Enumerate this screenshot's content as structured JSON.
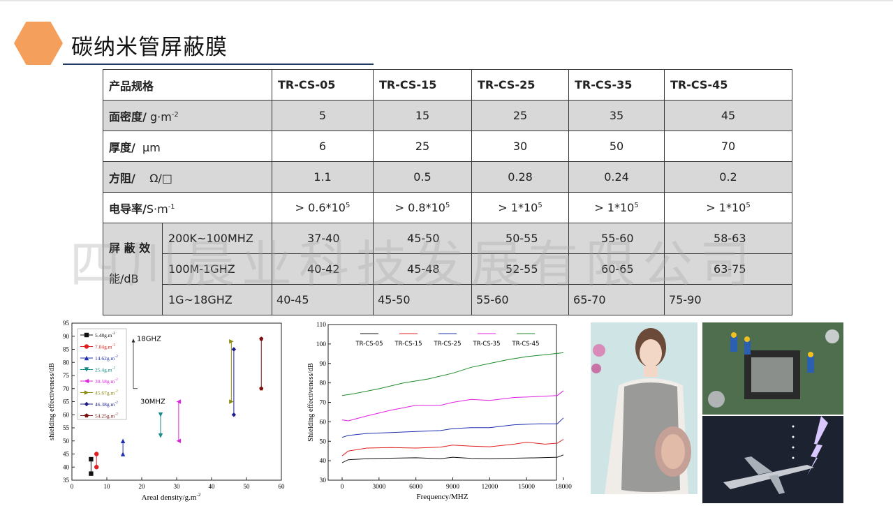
{
  "header": {
    "title": "碳纳米管屏蔽膜"
  },
  "watermark": "四川晨业科技发展有限公司",
  "table": {
    "spec_label": "产品规格",
    "models": [
      "TR-CS-05",
      "TR-CS-15",
      "TR-CS-25",
      "TR-CS-35",
      "TR-CS-45"
    ],
    "areal_density": {
      "label": "面密度/",
      "unit": "g·m",
      "unit_exp": "-2",
      "values": [
        "5",
        "15",
        "25",
        "35",
        "45"
      ]
    },
    "thickness": {
      "label": "厚度/",
      "unit": "μm",
      "values": [
        "6",
        "25",
        "30",
        "50",
        "70"
      ]
    },
    "sheet_resistance": {
      "label": "方阻/",
      "unit": "Ω/□",
      "values": [
        "1.1",
        "0.5",
        "0.28",
        "0.24",
        "0.2"
      ]
    },
    "conductivity": {
      "label": "电导率/",
      "unit": "S·m",
      "unit_exp": "-1",
      "values": [
        {
          "base": "> 0.6*10",
          "exp": "5"
        },
        {
          "base": "> 0.8*10",
          "exp": "5"
        },
        {
          "base": "> 1*10",
          "exp": "5"
        },
        {
          "base": "> 1*10",
          "exp": "5"
        },
        {
          "base": "> 1*10",
          "exp": "5"
        }
      ]
    },
    "shielding": {
      "label_line1": "屏 蔽 效",
      "label_line2": "能/dB",
      "rows": [
        {
          "range": "200K~100MHZ",
          "values": [
            "37-40",
            "45-50",
            "50-55",
            "55-60",
            "58-63"
          ]
        },
        {
          "range": "100M-1GHZ",
          "values": [
            "40-42",
            "45-48",
            "52-55",
            "60-65",
            "63-75"
          ]
        },
        {
          "range": "1G~18GHZ",
          "values": [
            "40-45",
            "45-50",
            "55-60",
            "65-70",
            "75-90"
          ]
        }
      ]
    }
  },
  "chart_data": [
    {
      "type": "scatter",
      "xlabel": "Areal density/g.m",
      "xlabel_exp": "-2",
      "ylabel": "shielding effectiveness/dB",
      "xlim": [
        0,
        60
      ],
      "ylim": [
        35,
        95
      ],
      "xticks": [
        0,
        10,
        20,
        30,
        40,
        50,
        60
      ],
      "yticks": [
        35,
        40,
        45,
        50,
        55,
        60,
        65,
        70,
        75,
        80,
        85,
        90,
        95
      ],
      "annotation_top": "18GHZ",
      "annotation_bottom": "30MHZ",
      "legend_position": "top-left",
      "series": [
        {
          "name": "5.48g.m",
          "exp": "-2",
          "x": 5.48,
          "low": 37.5,
          "high": 43,
          "marker": "square",
          "color": "#111111"
        },
        {
          "name": "7.04g.m",
          "exp": "-2",
          "x": 7.04,
          "low": 40,
          "high": 45,
          "marker": "circle",
          "color": "#e02020"
        },
        {
          "name": "14.62g.m",
          "exp": "-2",
          "x": 14.62,
          "low": 45,
          "high": 50,
          "marker": "triangle-up",
          "color": "#1e2fb0"
        },
        {
          "name": "25.4g.m",
          "exp": "-2",
          "x": 25.4,
          "low": 52,
          "high": 60,
          "marker": "triangle-down",
          "color": "#168a8a"
        },
        {
          "name": "30.58g.m",
          "exp": "-2",
          "x": 30.58,
          "low": 50,
          "high": 65,
          "marker": "triangle-left",
          "color": "#e020e0"
        },
        {
          "name": "45.67g.m",
          "exp": "-2",
          "x": 45.67,
          "low": 65,
          "high": 88,
          "marker": "triangle-right",
          "color": "#8a8a10"
        },
        {
          "name": "46.38g.m",
          "exp": "-2",
          "x": 46.38,
          "low": 60,
          "high": 85,
          "marker": "diamond",
          "color": "#1a1a8a"
        },
        {
          "name": "54.25g.m",
          "exp": "-2",
          "x": 54.25,
          "low": 70,
          "high": 89,
          "marker": "pentagon",
          "color": "#7a1010"
        }
      ]
    },
    {
      "type": "line",
      "xlabel": "Frequency/MHZ",
      "ylabel": "Shielding effectiveness/dB",
      "xlim": [
        0,
        18000
      ],
      "ylim": [
        30,
        110
      ],
      "xticks": [
        0,
        3000,
        6000,
        9000,
        12000,
        15000,
        18000
      ],
      "yticks": [
        30,
        40,
        50,
        60,
        70,
        80,
        90,
        100,
        110
      ],
      "legend_position": "top",
      "series": [
        {
          "name": "TR-CS-05",
          "color": "#111111",
          "x": [
            0,
            500,
            2000,
            4000,
            6000,
            8000,
            9000,
            10500,
            12000,
            14000,
            16000,
            17500,
            18000
          ],
          "y": [
            39,
            40.5,
            41,
            41.3,
            41.5,
            41,
            41.8,
            41.2,
            41,
            41.3,
            41.5,
            41.8,
            43
          ]
        },
        {
          "name": "TR-CS-15",
          "color": "#e02020",
          "x": [
            0,
            500,
            2000,
            4000,
            6000,
            8000,
            9000,
            10500,
            12000,
            14000,
            15000,
            16500,
            17500,
            18000
          ],
          "y": [
            42.5,
            45,
            46.5,
            46.8,
            46.5,
            47,
            48,
            47.5,
            47.2,
            48.5,
            49.5,
            48.5,
            49,
            51
          ]
        },
        {
          "name": "TR-CS-25",
          "color": "#1e2fb0",
          "x": [
            0,
            500,
            2000,
            4000,
            6000,
            8000,
            9000,
            10500,
            12000,
            14000,
            16000,
            17500,
            18000
          ],
          "y": [
            52,
            53,
            54,
            54.5,
            55,
            55.5,
            56.5,
            57,
            57,
            58.5,
            59,
            59,
            62
          ]
        },
        {
          "name": "TR-CS-35",
          "color": "#e020e0",
          "x": [
            0,
            500,
            2000,
            4000,
            6000,
            8000,
            9000,
            10500,
            12000,
            14000,
            16000,
            17500,
            18000
          ],
          "y": [
            61,
            60.5,
            63,
            66,
            68.5,
            68.5,
            70,
            71.5,
            71,
            72.5,
            73,
            73.5,
            76
          ]
        },
        {
          "name": "TR-CS-45",
          "color": "#1e8a2a",
          "x": [
            0,
            1000,
            3000,
            5000,
            7000,
            9000,
            10500,
            12000,
            13500,
            15000,
            16500,
            18000
          ],
          "y": [
            73.5,
            74.5,
            77,
            80,
            82,
            85,
            88,
            90,
            92,
            93.5,
            94.5,
            95.5
          ]
        }
      ]
    }
  ]
}
